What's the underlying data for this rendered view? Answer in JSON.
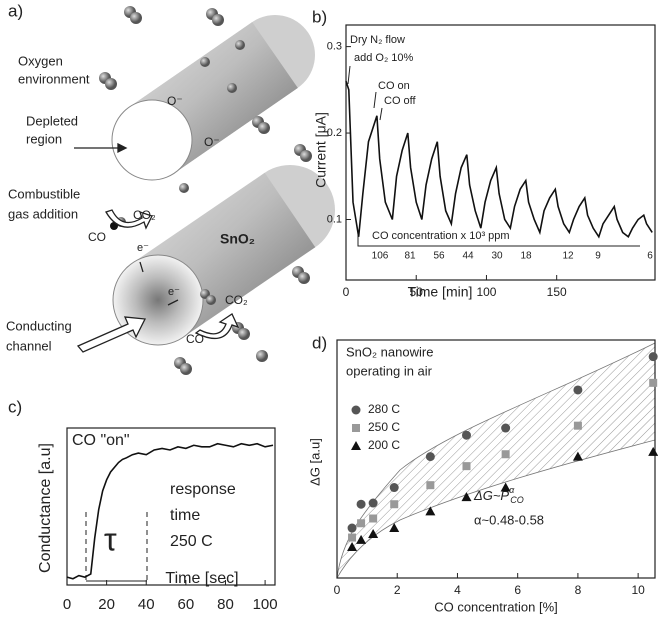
{
  "panel_labels": [
    "a)",
    "b)",
    "c)",
    "d)"
  ],
  "diagram": {
    "labels": [
      "Oxygen",
      "environment",
      "O⁻",
      "O⁻",
      "Depleted",
      "region",
      "Combustible",
      "gas addition",
      "CO₂",
      "CO",
      "SnO₂",
      "e⁻",
      "e⁻",
      "Conducting",
      "channel",
      "CO₂",
      "CO"
    ]
  },
  "chart_data": [
    {
      "type": "line",
      "x_label": "Time [min]",
      "y_label": "Current [μA]",
      "xlim": [
        0,
        220
      ],
      "ylim": [
        0.03,
        0.325
      ],
      "xticks": [
        0,
        50,
        100,
        150
      ],
      "yticks": [
        0.1,
        0.2,
        0.3
      ],
      "annotations": [
        "Dry N₂ flow",
        "add O₂ 10%",
        "CO on",
        "CO off",
        "CO concentration x 10³ ppm"
      ],
      "cycle_labels": [
        "106",
        "81",
        "56",
        "44",
        "30",
        "18",
        "12",
        "9",
        "6"
      ],
      "series": [
        {
          "color": "#111111",
          "x": [
            0,
            2,
            5,
            9,
            12,
            16,
            22,
            24,
            28,
            33,
            36,
            40,
            44,
            46,
            50,
            54,
            57,
            61,
            65,
            67,
            71,
            75,
            78,
            82,
            86,
            88,
            92,
            96,
            99,
            103,
            107,
            109,
            113,
            117,
            120,
            124,
            128,
            130,
            134,
            138,
            141,
            145,
            149,
            151,
            155,
            159,
            162,
            166,
            170,
            172,
            176,
            180,
            183,
            187,
            191,
            193,
            197,
            201,
            204,
            208,
            212,
            214,
            218
          ],
          "values": [
            0.26,
            0.25,
            0.12,
            0.08,
            0.13,
            0.19,
            0.22,
            0.17,
            0.12,
            0.1,
            0.15,
            0.18,
            0.2,
            0.16,
            0.12,
            0.1,
            0.14,
            0.17,
            0.19,
            0.15,
            0.11,
            0.095,
            0.13,
            0.16,
            0.175,
            0.14,
            0.11,
            0.09,
            0.12,
            0.145,
            0.16,
            0.13,
            0.1,
            0.09,
            0.115,
            0.135,
            0.145,
            0.12,
            0.1,
            0.085,
            0.11,
            0.125,
            0.135,
            0.115,
            0.095,
            0.085,
            0.1,
            0.115,
            0.125,
            0.105,
            0.09,
            0.08,
            0.095,
            0.105,
            0.115,
            0.1,
            0.085,
            0.08,
            0.09,
            0.1,
            0.105,
            0.095,
            0.085
          ]
        }
      ]
    },
    {
      "type": "line",
      "x_label": "Time [sec]",
      "y_label": "Conductance [a.u]",
      "xlim": [
        0,
        105
      ],
      "ylim": [
        0,
        1
      ],
      "xticks": [
        0,
        20,
        40,
        60,
        80,
        100
      ],
      "annotations": [
        "CO \"on\"",
        "response",
        "time",
        "250 C",
        "τ"
      ],
      "series": [
        {
          "color": "#111111",
          "x": [
            0,
            3,
            6,
            9,
            12,
            14,
            16,
            18,
            20,
            22,
            24,
            26,
            28,
            30,
            33,
            36,
            40,
            44,
            48,
            52,
            56,
            60,
            64,
            68,
            72,
            76,
            80,
            84,
            88,
            92,
            96,
            100,
            104
          ],
          "values": [
            0.05,
            0.04,
            0.06,
            0.05,
            0.07,
            0.3,
            0.48,
            0.6,
            0.67,
            0.72,
            0.75,
            0.78,
            0.8,
            0.81,
            0.83,
            0.84,
            0.83,
            0.86,
            0.87,
            0.86,
            0.88,
            0.87,
            0.89,
            0.88,
            0.88,
            0.9,
            0.89,
            0.88,
            0.9,
            0.89,
            0.9,
            0.88,
            0.89
          ]
        }
      ]
    },
    {
      "type": "scatter",
      "x_label": "CO concentration [%]",
      "y_label": "ΔG [a.u]",
      "xlim": [
        0,
        10.56
      ],
      "ylim": [
        0,
        1
      ],
      "xticks": [
        0,
        2,
        4,
        6,
        8,
        10
      ],
      "title_lines": [
        "SnO₂ nanowire",
        "operating in air"
      ],
      "fit_formula": {
        "base": "ΔG~P",
        "sup": "α",
        "sub": "CO"
      },
      "fit_exponent": "α~0.48-0.58",
      "legend": "upper-left",
      "series": [
        {
          "name": "280 C",
          "color": "#555555",
          "marker": "circle",
          "x": [
            0.5,
            0.8,
            1.2,
            1.9,
            3.1,
            4.3,
            5.6,
            8.0,
            10.5
          ],
          "values": [
            0.21,
            0.31,
            0.315,
            0.38,
            0.51,
            0.6,
            0.63,
            0.79,
            0.93
          ]
        },
        {
          "name": "250 C",
          "color": "#999999",
          "marker": "square",
          "x": [
            0.5,
            0.8,
            1.2,
            1.9,
            3.1,
            4.3,
            5.6,
            8.0,
            10.5
          ],
          "values": [
            0.17,
            0.23,
            0.25,
            0.31,
            0.39,
            0.47,
            0.52,
            0.64,
            0.82
          ]
        },
        {
          "name": "200 C",
          "color": "#111111",
          "marker": "triangle",
          "x": [
            0.5,
            0.8,
            1.2,
            1.9,
            3.1,
            4.3,
            5.6,
            8.0,
            10.5
          ],
          "values": [
            0.13,
            0.16,
            0.185,
            0.21,
            0.28,
            0.34,
            0.38,
            0.51,
            0.53
          ]
        }
      ]
    }
  ]
}
